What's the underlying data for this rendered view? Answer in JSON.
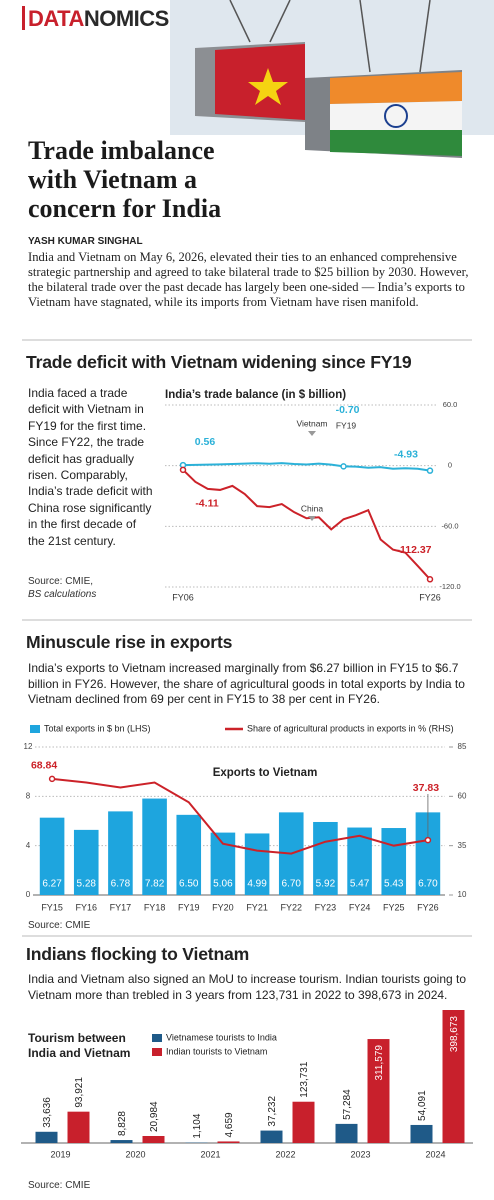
{
  "header": {
    "brand_red": "DATA",
    "brand_dark": "NOMICS",
    "title": "Trade imbalance with Vietnam a concern for India",
    "author": "YASH KUMAR SINGHAL",
    "intro": "India and Vietnam on May 6, 2026, elevated their ties to an enhanced comprehensive strategic partnership and agreed to take bilateral trade to $25 billion by 2030. However, the bilateral trade over the past decade has largely been one-sided — India’s exports to Vietnam have stagnated, while its imports from Vietnam have risen manifold."
  },
  "chart_data": [
    {
      "type": "line",
      "heading": "Trade deficit with Vietnam widening since FY19",
      "text": "India faced a trade deficit with Vietnam in FY19 for the first time. Since FY22, the trade deficit has gradually risen. Comparably, India’s trade deficit with China rose significantly in the first decade of the 21st century.",
      "source": "Source: CMIE,",
      "source_note": "BS calculations",
      "title": "India’s trade balance (in $ billion)",
      "annotation": "FY19",
      "categories": [
        "FY06",
        null,
        null,
        null,
        null,
        null,
        null,
        null,
        null,
        null,
        null,
        null,
        null,
        null,
        null,
        null,
        null,
        null,
        null,
        null,
        "FY26"
      ],
      "ylim": [
        -120,
        60
      ],
      "yticks": [
        {
          "value": 60,
          "label": "60.0"
        },
        0,
        {
          "value": -60,
          "label": "-60.0"
        },
        {
          "value": -120,
          "label": "-120.0"
        }
      ],
      "grid": true,
      "series": [
        {
          "name": "Vietnam",
          "color": "#2bb1d8",
          "values": [
            0.56,
            0.8,
            1.0,
            1.3,
            1.6,
            2.0,
            2.4,
            1.9,
            2.5,
            1.6,
            1.2,
            2.0,
            1.0,
            -0.7,
            -1.0,
            -2.0,
            -1.5,
            -3.0,
            -2.6,
            -3.1,
            -4.93
          ],
          "value_labels": [
            "0.56",
            null,
            null,
            null,
            null,
            null,
            null,
            null,
            null,
            null,
            null,
            null,
            null,
            "-0.70",
            null,
            null,
            null,
            null,
            null,
            null,
            "-4.93"
          ]
        },
        {
          "name": "China",
          "color": "#cc2229",
          "values": [
            -4.11,
            -16,
            -23,
            -24,
            -20,
            -28,
            -40,
            -41,
            -38,
            -46,
            -52,
            -51,
            -63,
            -53,
            -49,
            -44,
            -73,
            -83,
            -86,
            -99,
            -112.37
          ],
          "value_labels": [
            "-4.11",
            null,
            null,
            null,
            null,
            null,
            null,
            null,
            null,
            null,
            null,
            null,
            null,
            null,
            null,
            null,
            null,
            null,
            null,
            null,
            "-112.37"
          ]
        }
      ]
    },
    {
      "type": "bar",
      "heading": "Minuscule rise in exports",
      "text": "India’s exports to Vietnam increased marginally from $6.27 billion in FY15 to $6.7 billion in FY26. However, the share of agricultural goods in total exports by India to Vietnam declined from 69 per cent in FY15 to 38 per cent in FY26.",
      "source": "Source: CMIE",
      "title": "Exports to Vietnam",
      "categories": [
        "FY15",
        "FY16",
        "FY17",
        "FY18",
        "FY19",
        "FY20",
        "FY21",
        "FY22",
        "FY23",
        "FY24",
        "FY25",
        "FY26"
      ],
      "ylim": [
        0,
        12
      ],
      "yticks": [
        0,
        4,
        8,
        12
      ],
      "y2lim": [
        10,
        85
      ],
      "y2ticks": [
        10,
        35,
        60,
        85
      ],
      "grid": true,
      "series": [
        {
          "name": "Total exports in $ bn (LHS)",
          "type": "bar",
          "color": "#1ea5de",
          "values": [
            6.27,
            5.28,
            6.78,
            7.82,
            6.5,
            5.06,
            4.99,
            6.7,
            5.92,
            5.47,
            5.43,
            6.7
          ],
          "value_labels": [
            "6.27",
            "5.28",
            "6.78",
            "7.82",
            "6.50",
            "5.06",
            "4.99",
            "6.70",
            "5.92",
            "5.47",
            "5.43",
            "6.70"
          ]
        },
        {
          "name": "Share of agricultural products in exports in % (RHS)",
          "type": "line",
          "axis": "y2",
          "color": "#cc2229",
          "values": [
            68.84,
            67,
            64.5,
            67,
            57,
            36,
            32.5,
            31,
            37,
            40,
            35,
            37.83
          ],
          "value_labels": [
            "68.84",
            null,
            null,
            null,
            null,
            null,
            null,
            null,
            null,
            null,
            null,
            "37.83"
          ]
        }
      ]
    },
    {
      "type": "bar",
      "heading": "Indians flocking to Vietnam",
      "text": "India and Vietnam also signed an MoU to increase tourism. Indian tourists going to Vietnam more than trebled in 3 years from 123,731 in 2022 to 398,673 in 2024.",
      "source": "Source: CMIE",
      "title": "Tourism between India and Vietnam",
      "categories": [
        "2019",
        "2020",
        "2021",
        "2022",
        "2023",
        "2024"
      ],
      "series": [
        {
          "name": "Vietnamese tourists to India",
          "type": "bar",
          "color": "#1f5a88",
          "values": [
            33636,
            8828,
            1104,
            37232,
            57284,
            54091
          ],
          "value_labels": [
            "33,636",
            "8,828",
            "1,104",
            "37,232",
            "57,284",
            "54,091"
          ]
        },
        {
          "name": "Indian tourists to Vietnam",
          "type": "bar",
          "color": "#c8202c",
          "values": [
            93921,
            20984,
            4659,
            123731,
            311579,
            398673
          ],
          "value_labels": [
            "93,921",
            "20,984",
            "4,659",
            "123,731",
            "311,579",
            "398,673"
          ]
        }
      ]
    }
  ]
}
